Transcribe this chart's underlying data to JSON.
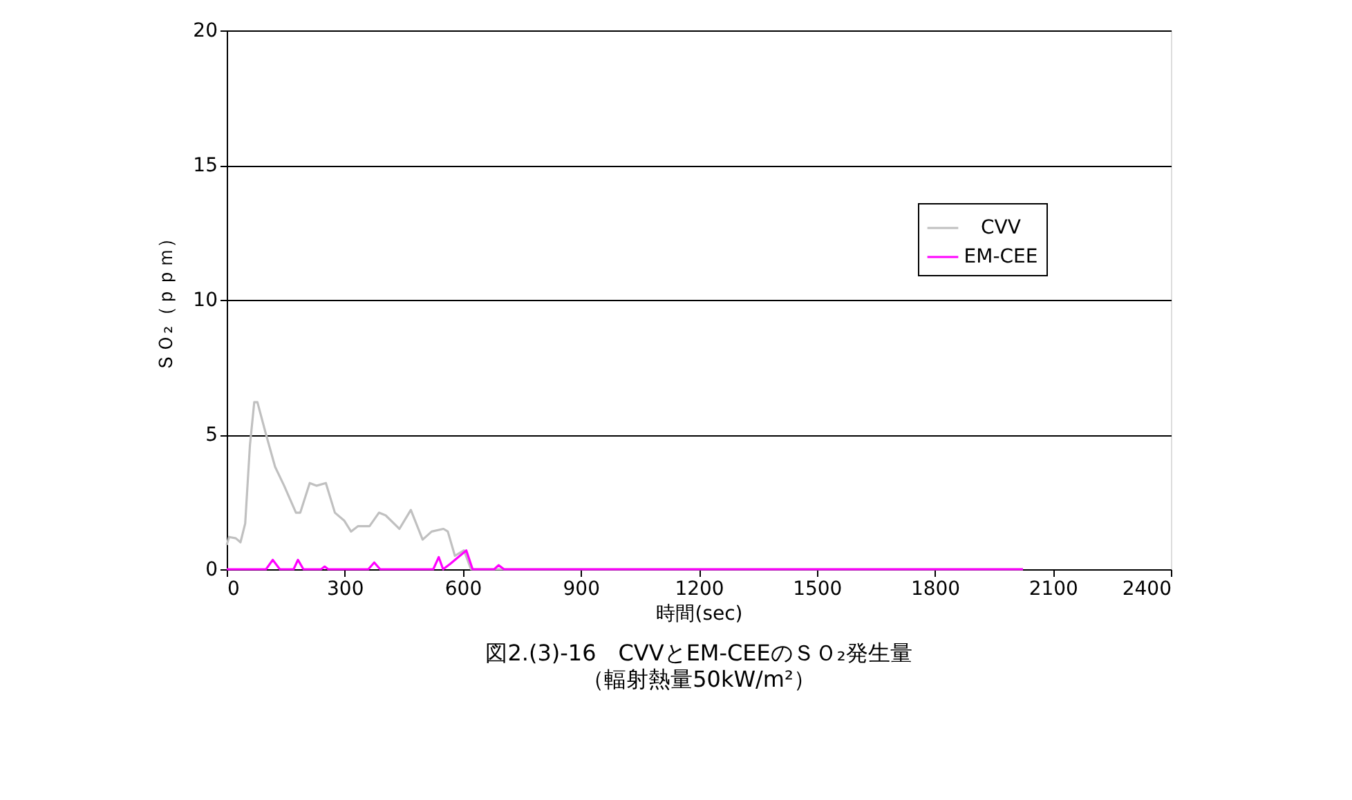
{
  "chart_data": {
    "type": "line",
    "title": "図2.(3)-16　CVVとEM-CEEのＳＯ₂発生量",
    "subtitle": "（輻射熱量50kW/m²）",
    "xlabel": "時間(sec)",
    "ylabel": "ＳＯ₂（ｐｐｍ）",
    "xlim": [
      0,
      2400
    ],
    "xticks": [
      0,
      300,
      600,
      900,
      1200,
      1500,
      1800,
      2100,
      2400
    ],
    "ylim": [
      0,
      20
    ],
    "yticks": [
      0,
      5,
      10,
      15,
      20
    ],
    "grid": "y",
    "legend": "top right",
    "series": [
      {
        "name": "CVV",
        "color": "#c0c0c0",
        "x": [
          0,
          6,
          23,
          35,
          47,
          59,
          70,
          78,
          100,
          123,
          146,
          176,
          187,
          211,
          228,
          252,
          275,
          299,
          316,
          334,
          363,
          387,
          404,
          439,
          468,
          498,
          521,
          551,
          562,
          580,
          603,
          621,
          2024
        ],
        "values": [
          0.9,
          1.2,
          1.15,
          1.0,
          1.7,
          4.6,
          6.2,
          6.2,
          5.0,
          3.8,
          3.1,
          2.1,
          2.1,
          3.2,
          3.1,
          3.2,
          2.1,
          1.8,
          1.4,
          1.6,
          1.6,
          2.1,
          2.0,
          1.5,
          2.2,
          1.1,
          1.4,
          1.5,
          1.4,
          0.5,
          0.7,
          0,
          0
        ]
      },
      {
        "name": "EM-CEE",
        "color": "#ff00ff",
        "x": [
          0,
          100,
          117,
          135,
          170,
          181,
          195,
          240,
          249,
          258,
          360,
          375,
          390,
          525,
          539,
          550,
          568,
          609,
          625,
          680,
          691,
          705,
          2024
        ],
        "values": [
          0,
          0,
          0.35,
          0,
          0,
          0.35,
          0,
          0,
          0.1,
          0,
          0,
          0.25,
          0,
          0,
          0.45,
          0,
          0.2,
          0.7,
          0,
          0,
          0.15,
          0,
          0
        ]
      }
    ]
  }
}
